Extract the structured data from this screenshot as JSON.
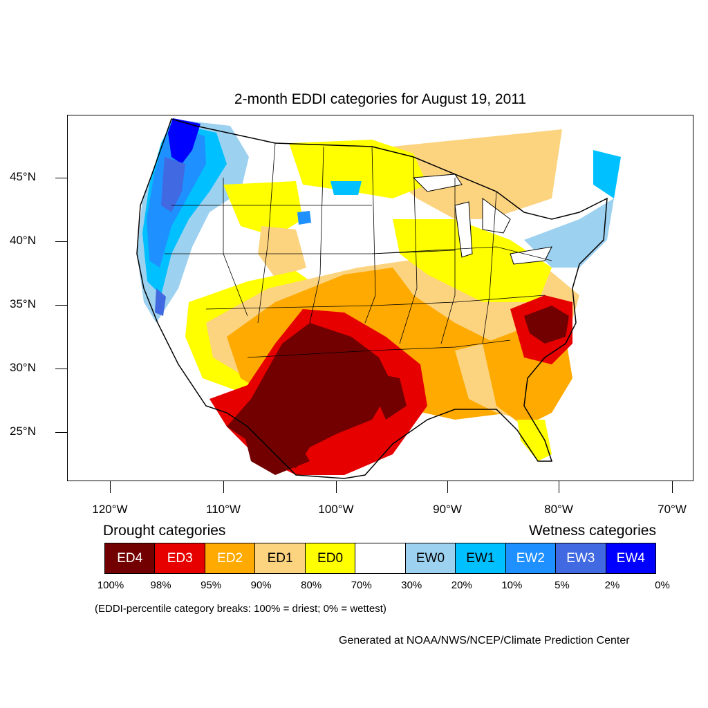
{
  "title": "2-month EDDI categories for August 19, 2011",
  "axes": {
    "latitude_labels": [
      "45°N",
      "40°N",
      "35°N",
      "30°N",
      "25°N"
    ],
    "longitude_labels": [
      "120°W",
      "110°W",
      "100°W",
      "90°W",
      "80°W",
      "70°W"
    ]
  },
  "legend": {
    "drought_heading": "Drought categories",
    "wetness_heading": "Wetness categories",
    "categories": [
      {
        "label": "ED4",
        "color": "#730000",
        "text_color": "#ffffff"
      },
      {
        "label": "ED3",
        "color": "#e60000",
        "text_color": "#ffffff"
      },
      {
        "label": "ED2",
        "color": "#ffaa00",
        "text_color": "#ffffff"
      },
      {
        "label": "ED1",
        "color": "#fcd37f",
        "text_color": "#000000"
      },
      {
        "label": "ED0",
        "color": "#ffff00",
        "text_color": "#000000"
      },
      {
        "label": "",
        "color": "#ffffff",
        "text_color": "#000000"
      },
      {
        "label": "EW0",
        "color": "#9dd1f0",
        "text_color": "#000000"
      },
      {
        "label": "EW1",
        "color": "#00c0ff",
        "text_color": "#000000"
      },
      {
        "label": "EW2",
        "color": "#1e90ff",
        "text_color": "#ffffff"
      },
      {
        "label": "EW3",
        "color": "#4169e1",
        "text_color": "#ffffff"
      },
      {
        "label": "EW4",
        "color": "#0000ff",
        "text_color": "#ffffff"
      }
    ],
    "breaks": [
      "100%",
      "98%",
      "95%",
      "90%",
      "80%",
      "70%",
      "30%",
      "20%",
      "10%",
      "5%",
      "2%",
      "0%"
    ],
    "note": "(EDDI-percentile category breaks: 100% = driest; 0% = wettest)"
  },
  "credit": "Generated at NOAA/NWS/NCEP/Climate Prediction Center"
}
